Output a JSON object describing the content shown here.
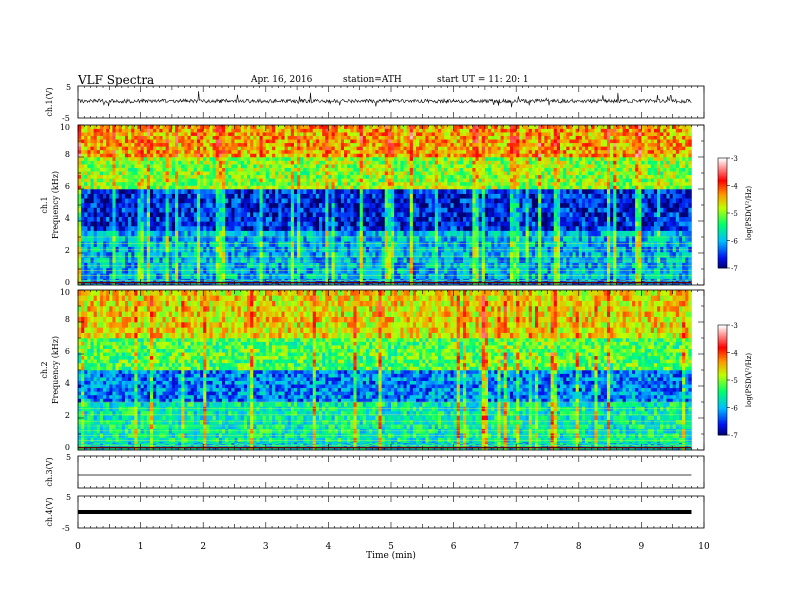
{
  "header": {
    "title": "VLF  Spectra",
    "date": "Apr. 16, 2016",
    "station": "station=ATH",
    "start": "start  UT  =    11: 20: 1"
  },
  "colorbar": {
    "label": "log(PSD(V²/Hz)",
    "ticks": [
      "-3",
      "-4",
      "-5",
      "-6",
      "-7"
    ]
  },
  "chart_data": [
    {
      "type": "line",
      "panel": "ch.1 waveform",
      "ylabel": "ch.1(V)",
      "ylim": [
        -5,
        5
      ],
      "yticks": [
        "5",
        "-5"
      ],
      "description_values": {
        "baseline_V": 0.3,
        "noise_range_V": [
          -1.5,
          2
        ]
      },
      "x": [
        0,
        1,
        2,
        3,
        4,
        5,
        6,
        7,
        8,
        9,
        9.8
      ],
      "values": [
        0.3,
        0.3,
        0.3,
        0.3,
        0.3,
        0.3,
        0.3,
        0.3,
        0.3,
        0.3,
        0.3
      ]
    },
    {
      "type": "heatmap",
      "panel": "ch.1 spectrogram",
      "ylabel": "ch.1\nFrequency (kHz)",
      "ylim": [
        0,
        10
      ],
      "yticks": [
        "0",
        "2",
        "4",
        "6",
        "8",
        "10"
      ],
      "colorscale": {
        "min": -7,
        "max": -3,
        "colors": [
          "#000070",
          "#0010ff",
          "#00c8ff",
          "#00ff60",
          "#c8ff00",
          "#ff9000",
          "#ff0000",
          "#ffffff"
        ]
      },
      "bands_kHz_logPSD": [
        {
          "from": 0,
          "to": 0.4,
          "value": -6.2
        },
        {
          "from": 0.4,
          "to": 3.4,
          "value": -6.0
        },
        {
          "from": 3.4,
          "to": 6,
          "value": -6.6
        },
        {
          "from": 6,
          "to": 8,
          "value": -5.0
        },
        {
          "from": 8,
          "to": 10,
          "value": -4.4
        }
      ]
    },
    {
      "type": "heatmap",
      "panel": "ch.2 spectrogram",
      "ylabel": "ch.2\nFrequency (kHz)",
      "ylim": [
        0,
        10
      ],
      "yticks": [
        "0",
        "2",
        "4",
        "6",
        "8",
        "10"
      ],
      "colorscale": {
        "min": -7,
        "max": -3
      },
      "bands_kHz_logPSD": [
        {
          "from": 0,
          "to": 0.5,
          "value": -5.8
        },
        {
          "from": 0.5,
          "to": 3,
          "value": -5.6
        },
        {
          "from": 3,
          "to": 5,
          "value": -6.2
        },
        {
          "from": 5,
          "to": 7,
          "value": -5.2
        },
        {
          "from": 7,
          "to": 10,
          "value": -4.6
        }
      ]
    },
    {
      "type": "line",
      "panel": "ch.3 waveform",
      "ylabel": "ch.3(V)",
      "ylim": [
        -5,
        5
      ],
      "yticks": [
        "5"
      ],
      "x": [
        0,
        9.8
      ],
      "values": [
        0,
        0
      ]
    },
    {
      "type": "line",
      "panel": "ch.4 waveform",
      "ylabel": "ch.4(V)",
      "ylim": [
        -5,
        5
      ],
      "yticks": [
        "5",
        "-5"
      ],
      "x": [
        0,
        9.8
      ],
      "values": [
        0,
        0
      ]
    }
  ],
  "xaxis": {
    "label": "Time  (min)",
    "ticks": [
      "0",
      "1",
      "2",
      "3",
      "4",
      "5",
      "6",
      "7",
      "8",
      "9",
      "10"
    ],
    "range": [
      0,
      10
    ]
  }
}
